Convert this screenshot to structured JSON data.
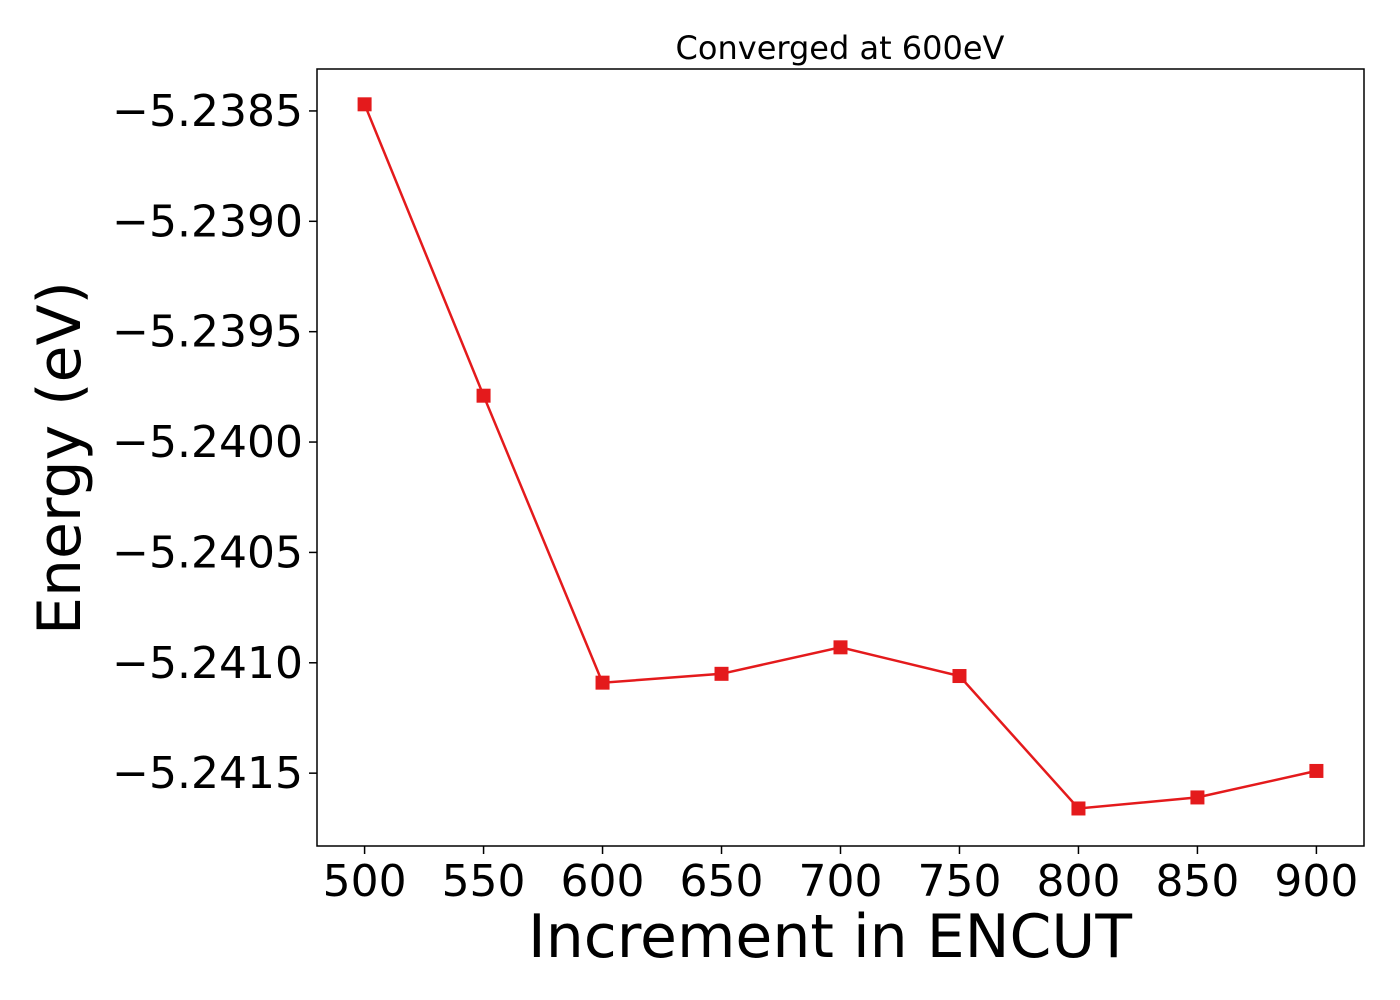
{
  "chart_data": {
    "type": "line",
    "title": "Converged at 600eV",
    "xlabel": "Increment in ENCUT",
    "ylabel": "Energy (eV)",
    "x": [
      500,
      550,
      600,
      650,
      700,
      750,
      800,
      850,
      900
    ],
    "series": [
      {
        "values": [
          -5.23847,
          -5.23979,
          -5.24109,
          -5.24105,
          -5.24093,
          -5.24106,
          -5.24166,
          -5.24161,
          -5.24149
        ],
        "color": "#e41a1c",
        "marker": "square"
      }
    ],
    "xticks": [
      500,
      550,
      600,
      650,
      700,
      750,
      800,
      850,
      900
    ],
    "xtick_labels": [
      "500",
      "550",
      "600",
      "650",
      "700",
      "750",
      "800",
      "850",
      "900"
    ],
    "yticks": [
      -5.2385,
      -5.239,
      -5.2395,
      -5.24,
      -5.2405,
      -5.241,
      -5.2415
    ],
    "ytick_labels": [
      "−5.2385",
      "−5.2390",
      "−5.2395",
      "−5.2400",
      "−5.2405",
      "−5.2410",
      "−5.2415"
    ],
    "xlim": [
      480,
      920
    ],
    "ylim": [
      -5.24183,
      -5.23831
    ],
    "grid": false,
    "legend": "none"
  }
}
